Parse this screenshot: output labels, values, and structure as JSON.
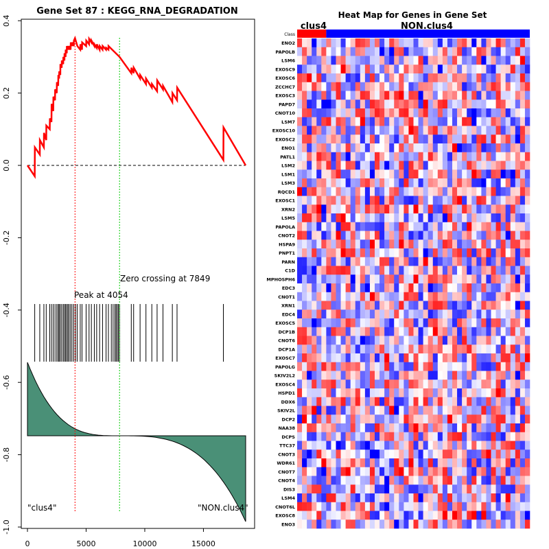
{
  "chart_data": [
    {
      "type": "line",
      "title": "Gene Set  87 : KEGG_RNA_DEGRADATION",
      "x_ticks": [
        0,
        5000,
        10000,
        15000
      ],
      "y_ticks": [
        "0.4",
        "0.2",
        "0.0",
        "-0.2",
        "-0.4",
        "-0.6",
        "-0.8",
        "-1.0"
      ],
      "xlim": [
        0,
        18600
      ],
      "ylim": [
        -1.0,
        0.42
      ],
      "peak_label": "Peak at 4054",
      "peak_x": 4054,
      "zero_label": "Zero crossing at 7849",
      "zero_x": 7849,
      "left_label": "\"clus4\"",
      "right_label": "\"NON.clus4\"",
      "colors": {
        "es_line": "#ff0000",
        "peak_line": "#ff0000",
        "zero_line": "#00cc00",
        "metric_fill": "#4a9077"
      },
      "hit_positions": [
        620,
        1050,
        1400,
        1600,
        1900,
        2050,
        2200,
        2350,
        2500,
        2620,
        2700,
        2800,
        2920,
        3050,
        3150,
        3250,
        3350,
        3450,
        3550,
        3680,
        3800,
        3950,
        4100,
        4250,
        4500,
        4650,
        5000,
        5250,
        5450,
        5700,
        5900,
        6150,
        6400,
        6700,
        6900,
        7150,
        7300,
        7450,
        7550,
        7650,
        7750,
        7850,
        8850,
        9050,
        9600,
        10100,
        10600,
        11050,
        11550,
        12350,
        12750,
        16700
      ],
      "es_points": [
        [
          0,
          0.0
        ],
        [
          620,
          -0.03
        ],
        [
          630,
          0.05
        ],
        [
          1050,
          0.03
        ],
        [
          1060,
          0.07
        ],
        [
          1400,
          0.05
        ],
        [
          1410,
          0.09
        ],
        [
          1600,
          0.07
        ],
        [
          1610,
          0.11
        ],
        [
          1900,
          0.1
        ],
        [
          1910,
          0.13
        ],
        [
          2050,
          0.12
        ],
        [
          2060,
          0.17
        ],
        [
          2200,
          0.15
        ],
        [
          2210,
          0.19
        ],
        [
          2350,
          0.18
        ],
        [
          2360,
          0.21
        ],
        [
          2500,
          0.2
        ],
        [
          2510,
          0.23
        ],
        [
          2620,
          0.22
        ],
        [
          2630,
          0.25
        ],
        [
          2700,
          0.24
        ],
        [
          2710,
          0.26
        ],
        [
          2800,
          0.25
        ],
        [
          2810,
          0.28
        ],
        [
          2920,
          0.27
        ],
        [
          2930,
          0.29
        ],
        [
          3050,
          0.28
        ],
        [
          3060,
          0.3
        ],
        [
          3150,
          0.29
        ],
        [
          3160,
          0.31
        ],
        [
          3250,
          0.3
        ],
        [
          3260,
          0.32
        ],
        [
          3350,
          0.31
        ],
        [
          3360,
          0.33
        ],
        [
          3450,
          0.32
        ],
        [
          3460,
          0.33
        ],
        [
          3550,
          0.32
        ],
        [
          3560,
          0.33
        ],
        [
          3680,
          0.32
        ],
        [
          3690,
          0.34
        ],
        [
          3800,
          0.33
        ],
        [
          3810,
          0.34
        ],
        [
          3950,
          0.33
        ],
        [
          3960,
          0.345
        ],
        [
          4054,
          0.352
        ],
        [
          4250,
          0.33
        ],
        [
          4500,
          0.32
        ],
        [
          4510,
          0.335
        ],
        [
          4650,
          0.32
        ],
        [
          4660,
          0.34
        ],
        [
          5000,
          0.33
        ],
        [
          5010,
          0.345
        ],
        [
          5250,
          0.335
        ],
        [
          5260,
          0.35
        ],
        [
          5450,
          0.34
        ],
        [
          5460,
          0.345
        ],
        [
          5700,
          0.33
        ],
        [
          5710,
          0.335
        ],
        [
          5900,
          0.325
        ],
        [
          5910,
          0.335
        ],
        [
          6150,
          0.32
        ],
        [
          6160,
          0.33
        ],
        [
          6400,
          0.32
        ],
        [
          6410,
          0.33
        ],
        [
          6700,
          0.32
        ],
        [
          6710,
          0.325
        ],
        [
          6900,
          0.32
        ],
        [
          6910,
          0.33
        ],
        [
          7850,
          0.3
        ],
        [
          8850,
          0.255
        ],
        [
          8860,
          0.27
        ],
        [
          9050,
          0.255
        ],
        [
          9060,
          0.27
        ],
        [
          9600,
          0.24
        ],
        [
          9610,
          0.25
        ],
        [
          10100,
          0.225
        ],
        [
          10110,
          0.24
        ],
        [
          10600,
          0.215
        ],
        [
          10610,
          0.225
        ],
        [
          11050,
          0.205
        ],
        [
          11060,
          0.235
        ],
        [
          11550,
          0.21
        ],
        [
          11560,
          0.22
        ],
        [
          12350,
          0.175
        ],
        [
          12360,
          0.2
        ],
        [
          12750,
          0.18
        ],
        [
          12760,
          0.215
        ],
        [
          16700,
          0.015
        ],
        [
          16710,
          0.105
        ],
        [
          18600,
          0.0
        ]
      ]
    },
    {
      "type": "heatmap",
      "title": "Heat Map for Genes in Gene Set",
      "group_labels": [
        "clus4",
        "NON.clus4"
      ],
      "class_label": "Class",
      "genes": [
        "ENO2",
        "PAPOLB",
        "LSM6",
        "EXOSC9",
        "EXOSC6",
        "ZCCHC7",
        "EXOSC3",
        "PAPD7",
        "CNOT10",
        "LSM7",
        "EXOSC10",
        "EXOSC2",
        "ENO1",
        "PATL1",
        "LSM2",
        "LSM1",
        "LSM3",
        "RQCD1",
        "EXOSC1",
        "XRN2",
        "LSM5",
        "PAPOLA",
        "CNOT2",
        "HSPA9",
        "PNPT1",
        "PARN",
        "C1D",
        "MPHOSPH6",
        "EDC3",
        "CNOT1",
        "XRN1",
        "EDC4",
        "EXOSC5",
        "DCP1B",
        "CNOT6",
        "DCP1A",
        "EXOSC7",
        "PAPOLG",
        "SKIV2L2",
        "EXOSC4",
        "HSPD1",
        "DDX6",
        "SKIV2L",
        "DCP2",
        "NAA38",
        "DCPS",
        "TTC37",
        "CNOT3",
        "WDR61",
        "CNOT7",
        "CNOT4",
        "DIS3",
        "LSM4",
        "CNOT6L",
        "EXOSC8",
        "ENO3"
      ],
      "n_cols": 48,
      "n_group1": 6,
      "colors": {
        "group1": "#ff0000",
        "group2": "#0000ff"
      }
    }
  ]
}
